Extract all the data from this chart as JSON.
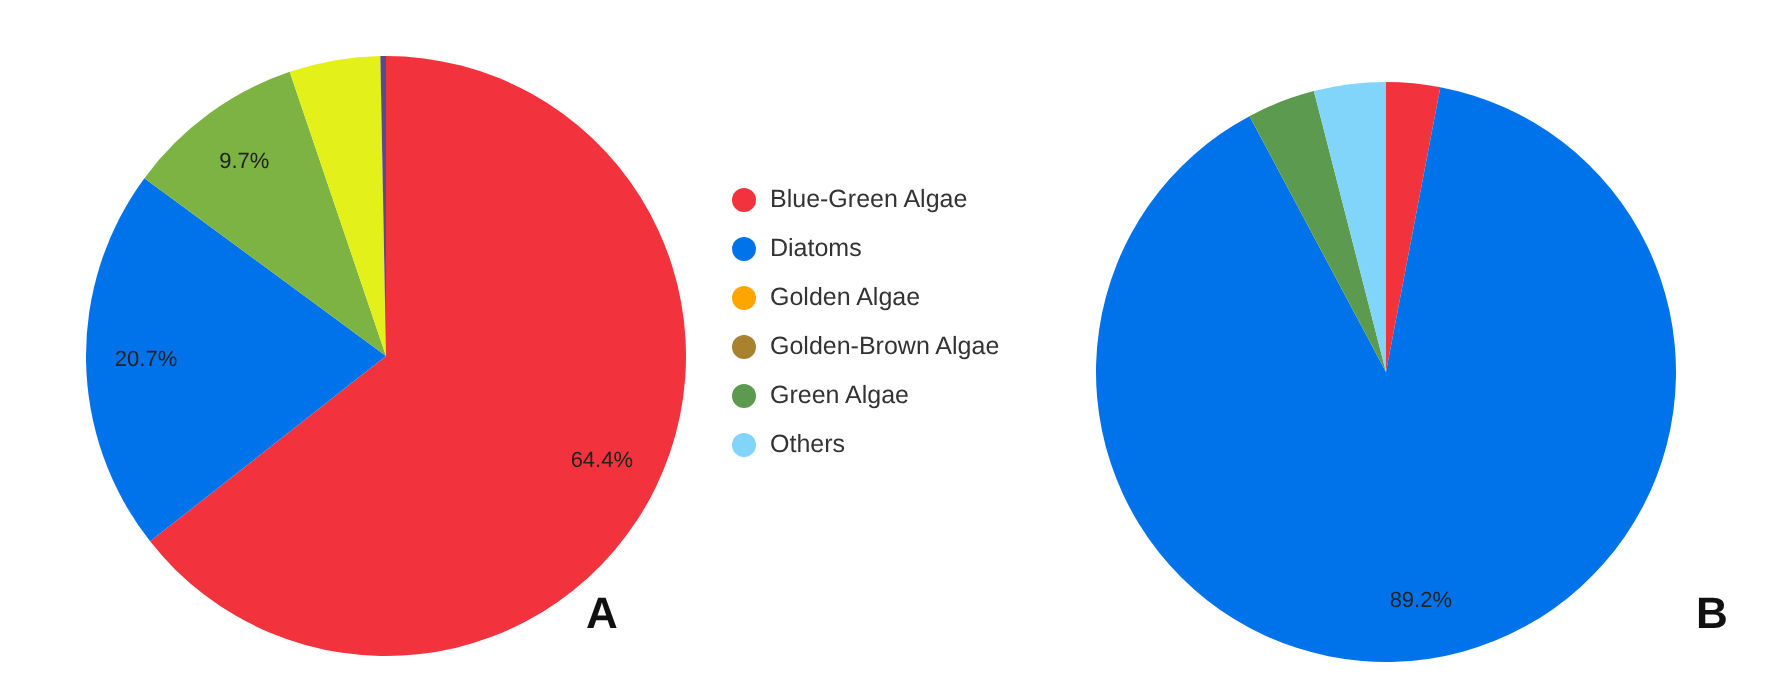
{
  "chart_data": [
    {
      "type": "pie",
      "categories": [
        null,
        null,
        null,
        null,
        null
      ],
      "values": [
        64.4,
        20.7,
        9.7,
        4.9,
        0.3
      ],
      "colors": [
        "#f2333d",
        "#0073ea",
        "#7cb342",
        "#e4f01a",
        "#5b4a8a"
      ],
      "value_labels": [
        "64.4%",
        "20.7%",
        "9.7%",
        null,
        null
      ],
      "annotations": [
        "A"
      ],
      "legend": false
    },
    {
      "type": "pie",
      "categories": [
        "Blue-Green Algae",
        "Diatoms",
        "Golden Algae",
        "Golden-Brown Algae",
        "Green Algae",
        "Others"
      ],
      "values": [
        3.0,
        89.2,
        0,
        0,
        3.8,
        4.0
      ],
      "colors": [
        "#f2333d",
        "#0073ea",
        "#ffa500",
        "#a8822f",
        "#5b9a4f",
        "#81d4fa"
      ],
      "value_labels": [
        null,
        "89.2%",
        null,
        null,
        null,
        null
      ],
      "annotations": [
        "B"
      ],
      "legend": "left"
    }
  ]
}
